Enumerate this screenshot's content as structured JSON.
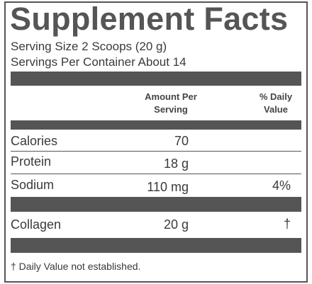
{
  "header": {
    "title": "Supplement Facts",
    "serving_size": "Serving Size 2 Scoops (20 g)",
    "servings_per_container": "Servings Per Container About 14"
  },
  "table": {
    "columns": [
      "Amount Per Serving",
      "% Daily Value"
    ],
    "rows": [
      {
        "name": "Calories",
        "amount": "70"
      },
      {
        "name": "Protein",
        "amount": "18 g"
      },
      {
        "name": "Sodium",
        "amount": "110 mg",
        "daily_value": "4%"
      },
      {
        "name": "Collagen",
        "amount": "20 g",
        "daily_value": "†"
      }
    ]
  },
  "footnote": "† Daily Value not established."
}
